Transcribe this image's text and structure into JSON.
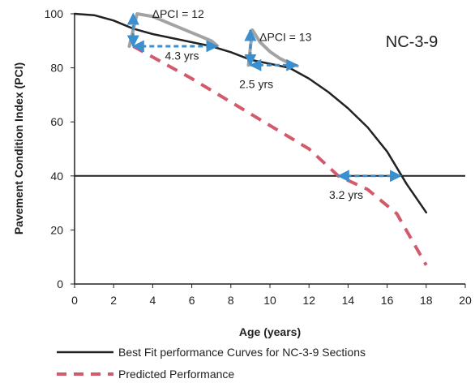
{
  "chart_data": {
    "type": "line",
    "title": "",
    "xlabel": "Age (years)",
    "ylabel": "Pavement Condition  Index (PCI)",
    "xlim": [
      0,
      20
    ],
    "ylim": [
      0,
      100
    ],
    "x_ticks": [
      0,
      2,
      4,
      6,
      8,
      10,
      12,
      14,
      16,
      18,
      20
    ],
    "y_ticks": [
      0,
      20,
      40,
      60,
      80,
      100
    ],
    "grid": false,
    "legend_position": "bottom",
    "corner_label": "NC-3-9",
    "threshold": {
      "y": 40,
      "color": "#222222"
    },
    "series": [
      {
        "name": "Best Fit performance Curves for NC-3-9 Sections",
        "style": "solid",
        "color": "#222222",
        "x": [
          0,
          1,
          2,
          3,
          4,
          5,
          6,
          7,
          8,
          9,
          10,
          11,
          12,
          13,
          14,
          15,
          16,
          17,
          18
        ],
        "y": [
          100,
          99.5,
          97.5,
          94.5,
          92.5,
          91,
          89.5,
          88,
          85.8,
          83,
          81.5,
          80,
          76,
          71,
          65,
          58,
          49,
          37,
          26.5
        ]
      },
      {
        "name": "Predicted Performance",
        "style": "dashed",
        "color": "#d35a6a",
        "x": [
          3,
          6,
          9,
          12,
          13.5,
          15,
          16.5,
          18
        ],
        "y": [
          88,
          76,
          63,
          50,
          40,
          35,
          26,
          7
        ]
      }
    ],
    "treatment_curves": [
      {
        "color": "#999999",
        "x": [
          2.8,
          3.2,
          4,
          5,
          6,
          7,
          7.3
        ],
        "y": [
          88,
          100,
          99,
          96,
          93,
          90,
          88.2
        ]
      },
      {
        "color": "#999999",
        "x": [
          8.9,
          9.1,
          9.5,
          10,
          10.5,
          11,
          11.4
        ],
        "y": [
          81,
          94,
          89.5,
          86,
          83.5,
          81.7,
          80.7
        ]
      }
    ],
    "annotations": [
      {
        "label": "ΔPCI = 12",
        "x": 5.3,
        "y": 98.5
      },
      {
        "label": "4.3 yrs",
        "x": 5.5,
        "y": 83
      },
      {
        "label": "ΔPCI = 13",
        "x": 10.8,
        "y": 90
      },
      {
        "label": "2.5 yrs",
        "x": 9.3,
        "y": 72.5
      },
      {
        "label": "3.2 yrs",
        "x": 13.9,
        "y": 31.5
      }
    ],
    "arrows": [
      {
        "color": "#3a8fd0",
        "x": [
          3,
          7.3
        ],
        "y": [
          88,
          88
        ]
      },
      {
        "color": "#3a8fd0",
        "x": [
          3,
          3
        ],
        "y": [
          88,
          100
        ]
      },
      {
        "color": "#3a8fd0",
        "x": [
          9,
          11.4
        ],
        "y": [
          81,
          81
        ]
      },
      {
        "color": "#3a8fd0",
        "x": [
          9,
          9
        ],
        "y": [
          81,
          94
        ]
      },
      {
        "color": "#3a8fd0",
        "x": [
          13.5,
          16.7
        ],
        "y": [
          40,
          40
        ]
      }
    ]
  }
}
